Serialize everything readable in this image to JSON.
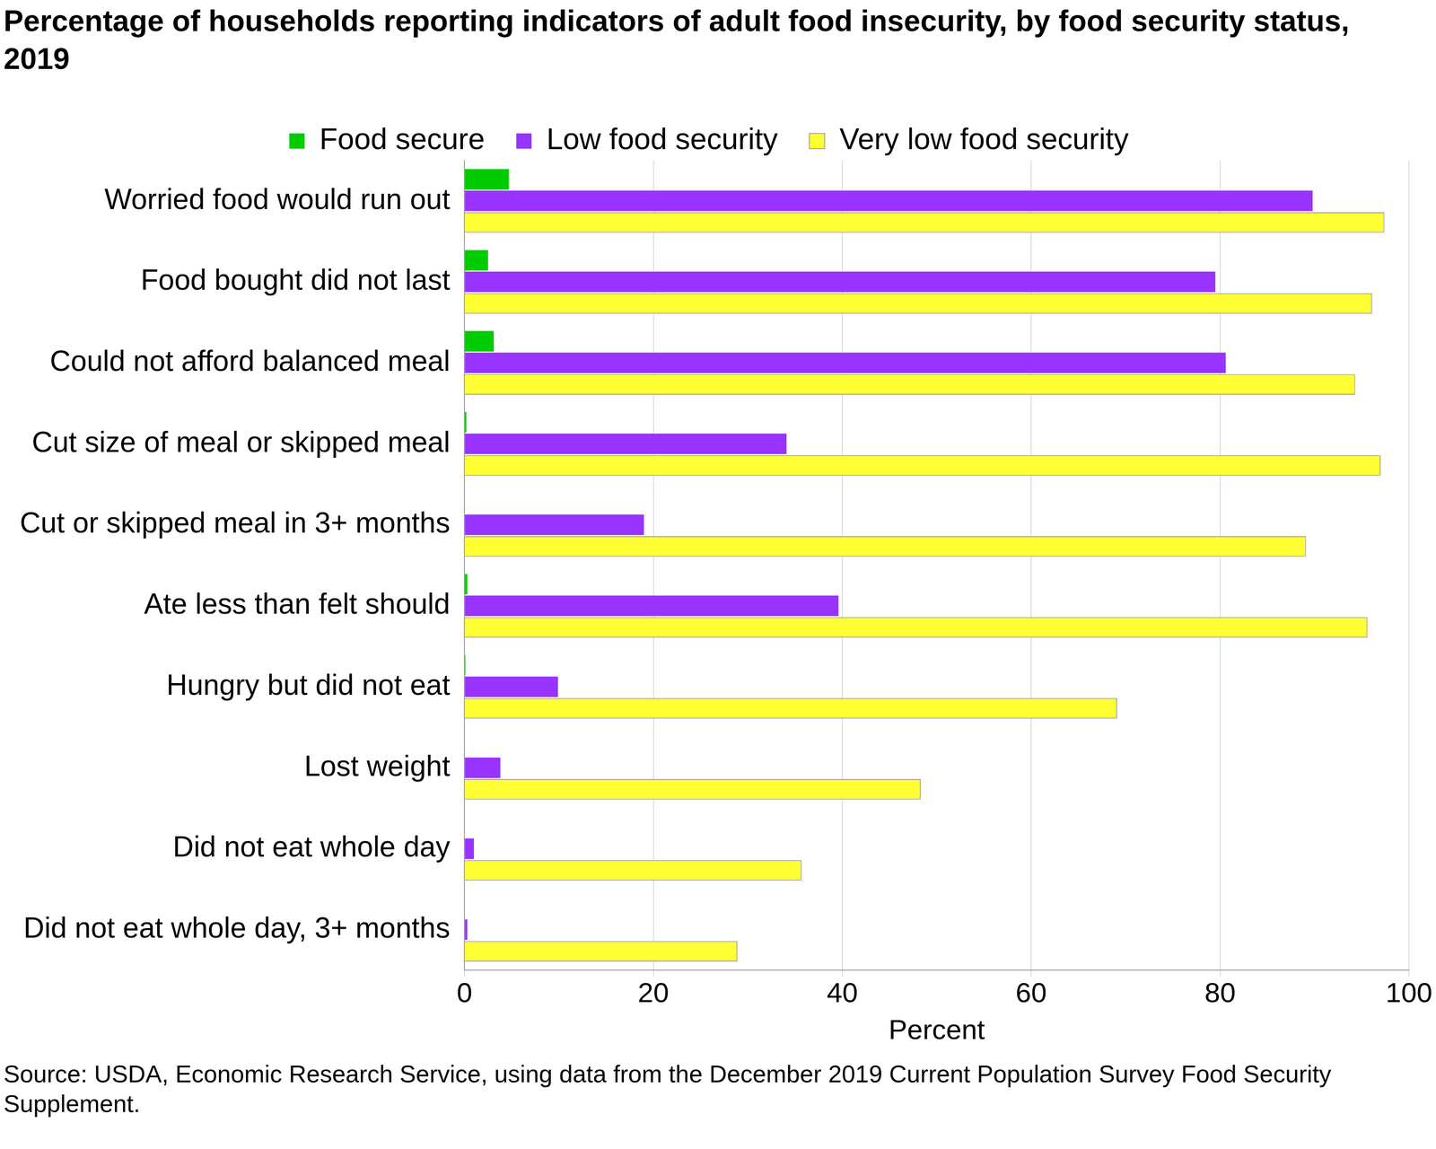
{
  "chart_data": {
    "type": "bar",
    "orientation": "horizontal",
    "title": "Percentage of households reporting indicators of adult food insecurity, by food security status, 2019",
    "source": "Source: USDA, Economic Research Service, using data from the December 2019 Current Population Survey Food Security Supplement.",
    "categories": [
      "Worried food would run out",
      "Food bought did not last",
      "Could not afford balanced meal",
      "Cut size of meal or skipped meal",
      "Cut or skipped meal in 3+ months",
      "Ate less than felt should",
      "Hungry but did not eat",
      "Lost weight",
      "Did not eat whole day",
      "Did not eat whole day, 3+ months"
    ],
    "series": [
      {
        "name": "Food secure",
        "color": "#00cc00",
        "values": [
          4.7,
          2.5,
          3.1,
          0.2,
          0,
          0.3,
          0.1,
          0,
          0,
          0
        ]
      },
      {
        "name": "Low food security",
        "color": "#9933ff",
        "values": [
          89.8,
          79.5,
          80.6,
          34.1,
          19.0,
          39.6,
          9.9,
          3.8,
          1.0,
          0.3
        ]
      },
      {
        "name": "Very low food security",
        "color": "#ffff33",
        "values": [
          97.4,
          96.1,
          94.3,
          97.0,
          89.1,
          95.6,
          69.1,
          48.3,
          35.7,
          28.9
        ]
      }
    ],
    "xlabel": "Percent",
    "xlim": [
      0,
      100
    ],
    "xticks": [
      0,
      20,
      40,
      60,
      80,
      100
    ],
    "grid": true,
    "legend": "top"
  }
}
